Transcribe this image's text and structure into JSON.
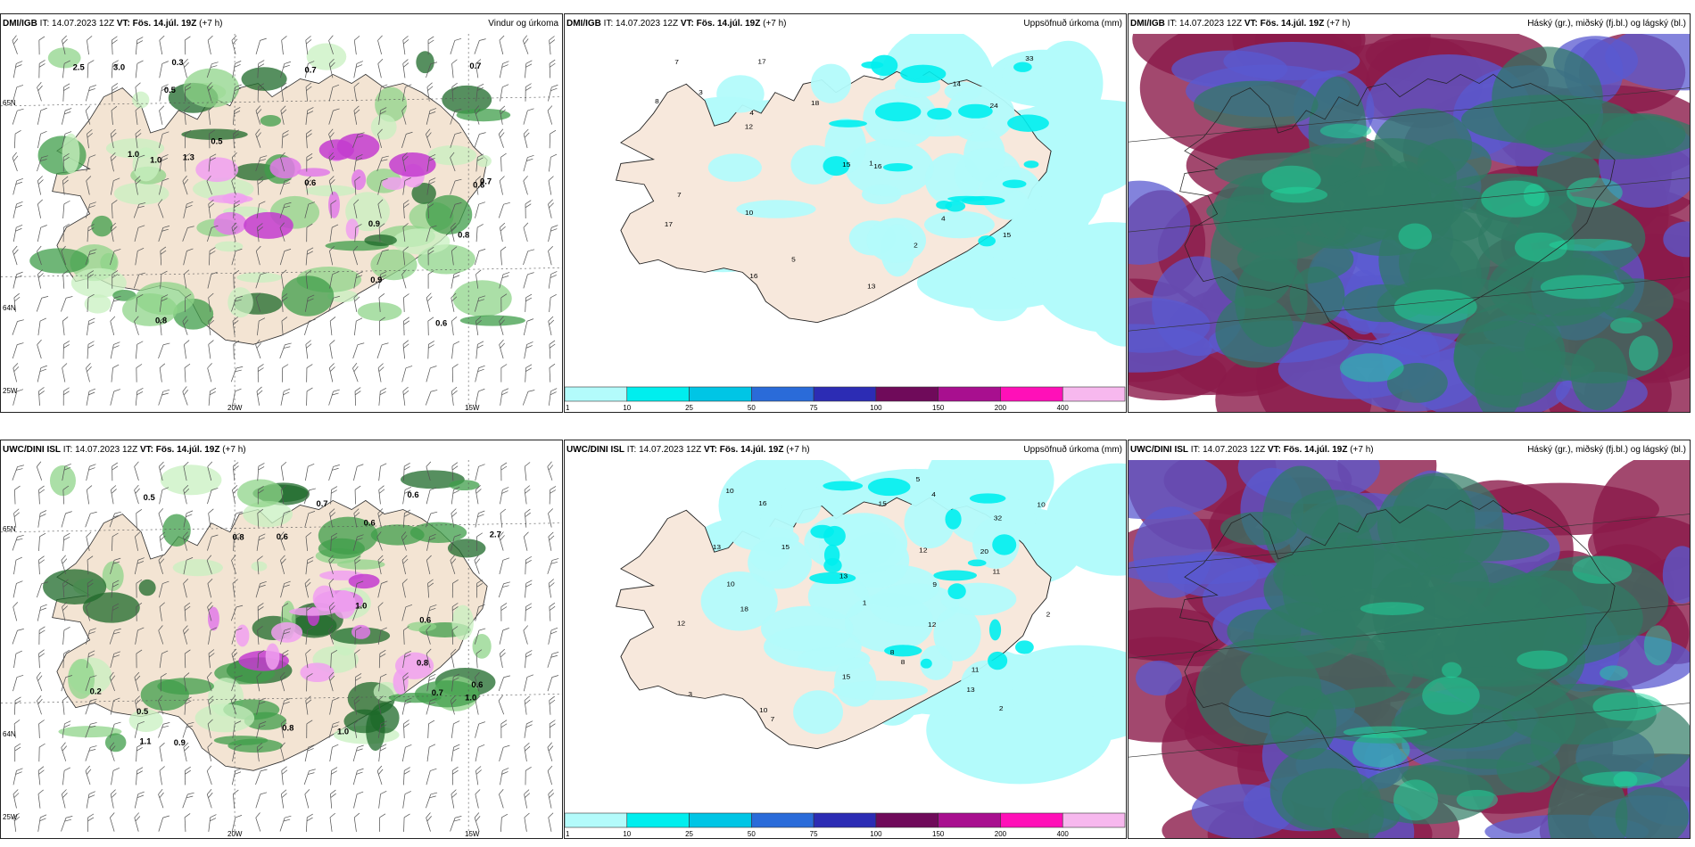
{
  "panels": [
    {
      "model": "DMI/IGB",
      "it": "IT: 14.07.2023 12Z",
      "vt": "VT: Fös. 14.júl. 19Z",
      "lead": "(+7 h)",
      "product": "Vindur og úrkoma",
      "kind": "wind"
    },
    {
      "model": "DMI/IGB",
      "it": "IT: 14.07.2023 12Z",
      "vt": "VT: Fös. 14.júl. 19Z",
      "lead": "(+7 h)",
      "product": "Uppsöfnuð úrkoma (mm)",
      "kind": "precip"
    },
    {
      "model": "DMI/IGB",
      "it": "IT: 14.07.2023 12Z",
      "vt": "VT: Fös. 14.júl. 19Z",
      "lead": "(+7 h)",
      "product": "Háský (gr.), miðský (fj.bl.) og lágský (bl.)",
      "kind": "cloud"
    },
    {
      "model": "UWC/DINI ISL",
      "it": "IT: 14.07.2023 12Z",
      "vt": "VT: Fös. 14.júl. 19Z",
      "lead": "(+7 h)",
      "product": "",
      "kind": "wind"
    },
    {
      "model": "UWC/DINI ISL",
      "it": "IT: 14.07.2023 12Z",
      "vt": "VT: Fös. 14.júl. 19Z",
      "lead": "(+7 h)",
      "product": "Uppsöfnuð úrkoma (mm)",
      "kind": "precip"
    },
    {
      "model": "UWC/DINI ISL",
      "it": "IT: 14.07.2023 12Z",
      "vt": "VT: Fös. 14.júl. 19Z",
      "lead": "(+7 h)",
      "product": "Háský (gr.), miðský (fj.bl.) og lágský (bl.)",
      "kind": "cloud"
    }
  ],
  "axis_labels": {
    "lat1": "65N",
    "lat2": "64N",
    "lon1": "25W",
    "lon2": "20W",
    "lon3": "15W"
  },
  "colorbar": {
    "colors": [
      "#b3fbfb",
      "#00eeee",
      "#00c5e5",
      "#2a6bd9",
      "#2c2cb4",
      "#6f0a5a",
      "#a80f8f",
      "#ff10b8",
      "#f7b8ee"
    ],
    "ticks": [
      "1",
      "10",
      "25",
      "50",
      "75",
      "100",
      "150",
      "200",
      "400"
    ]
  },
  "wind_labels": {
    "top": [
      "0.9",
      "0.6",
      "0.8",
      "0.6",
      "0.5",
      "0.3",
      "0.5",
      "3.0",
      "2.5",
      "1.0",
      "0.8",
      "0.7",
      "0.7",
      "0.7",
      "1.0",
      "0.6",
      "0.9",
      "1.3"
    ],
    "bottom": [
      "0.9",
      "0.8",
      "0.6",
      "0.5",
      "1.0",
      "0.6",
      "0.5",
      "0.2",
      "0.6",
      "1.0",
      "2.7",
      "0.8",
      "0.7",
      "0.6",
      "0.6",
      "1.1",
      "0.8",
      "0.7",
      "1.0"
    ]
  },
  "precip_labels": {
    "top": [
      "15",
      "17",
      "17",
      "18",
      "16",
      "33",
      "16",
      "24",
      "15",
      "14",
      "12",
      "10",
      "4",
      "7",
      "13",
      "7",
      "2",
      "4",
      "1",
      "5",
      "3",
      "8"
    ],
    "bottom": [
      "15",
      "13",
      "15",
      "12",
      "16",
      "12",
      "10",
      "8",
      "11",
      "12",
      "13",
      "32",
      "10",
      "18",
      "15",
      "13",
      "10",
      "10",
      "20",
      "9",
      "7",
      "8",
      "3",
      "2",
      "1",
      "4",
      "5",
      "2",
      "11"
    ]
  }
}
